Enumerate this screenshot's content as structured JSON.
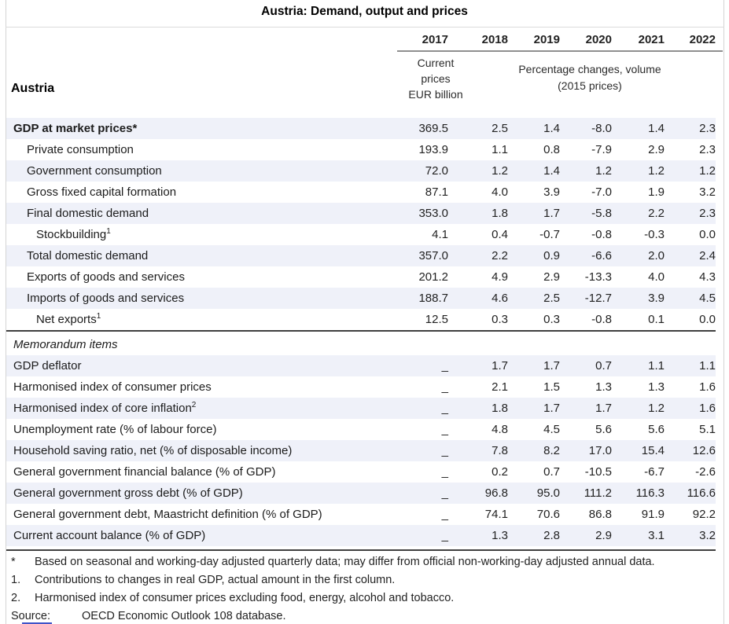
{
  "title": "Austria: Demand, output and prices",
  "colors": {
    "row_shading": "#eff1f9",
    "section_rule": "#3f3f3f",
    "years_underline": "#8f8f8f",
    "outer_border": "#d4d4d4",
    "statlink_blue": "#4053c8"
  },
  "table": {
    "country_label": "Austria",
    "years": [
      "2017",
      "2018",
      "2019",
      "2020",
      "2021",
      "2022"
    ],
    "col2017_subheader_lines": [
      "Current",
      "prices",
      "EUR billion"
    ],
    "volume_subheader_lines": [
      "Percentage changes, volume",
      "(2015 prices)"
    ],
    "sections": [
      {
        "rows": [
          {
            "label": "GDP at market prices*",
            "indent": 0,
            "bold": true,
            "shaded": true,
            "values": [
              "369.5",
              "2.5",
              "1.4",
              "-8.0",
              "1.4",
              "2.3"
            ]
          },
          {
            "label": "Private consumption",
            "indent": 1,
            "bold": false,
            "shaded": false,
            "values": [
              "193.9",
              "1.1",
              "0.8",
              "-7.9",
              "2.9",
              "2.3"
            ]
          },
          {
            "label": "Government consumption",
            "indent": 1,
            "bold": false,
            "shaded": true,
            "values": [
              "72.0",
              "1.2",
              "1.4",
              "1.2",
              "1.2",
              "1.2"
            ]
          },
          {
            "label": "Gross fixed capital formation",
            "indent": 1,
            "bold": false,
            "shaded": false,
            "values": [
              "87.1",
              "4.0",
              "3.9",
              "-7.0",
              "1.9",
              "3.2"
            ]
          },
          {
            "label": "Final domestic demand",
            "indent": 1,
            "bold": false,
            "shaded": true,
            "values": [
              "353.0",
              "1.8",
              "1.7",
              "-5.8",
              "2.2",
              "2.3"
            ]
          },
          {
            "label": "Stockbuilding",
            "sup": "1",
            "indent": 2,
            "bold": false,
            "shaded": false,
            "values": [
              "4.1",
              "0.4",
              "-0.7",
              "-0.8",
              "-0.3",
              "0.0"
            ]
          },
          {
            "label": "Total domestic demand",
            "indent": 1,
            "bold": false,
            "shaded": true,
            "values": [
              "357.0",
              "2.2",
              "0.9",
              "-6.6",
              "2.0",
              "2.4"
            ]
          },
          {
            "label": "Exports of goods and services",
            "indent": 1,
            "bold": false,
            "shaded": false,
            "values": [
              "201.2",
              "4.9",
              "2.9",
              "-13.3",
              "4.0",
              "4.3"
            ]
          },
          {
            "label": "Imports of goods and services",
            "indent": 1,
            "bold": false,
            "shaded": true,
            "values": [
              "188.7",
              "4.6",
              "2.5",
              "-12.7",
              "3.9",
              "4.5"
            ]
          },
          {
            "label": "Net exports",
            "sup": "1",
            "indent": 2,
            "bold": false,
            "shaded": false,
            "values": [
              "12.5",
              "0.3",
              "0.3",
              "-0.8",
              "0.1",
              "0.0"
            ]
          }
        ]
      },
      {
        "heading": "Memorandum items",
        "rows": [
          {
            "label": "GDP deflator",
            "indent": 0,
            "bold": false,
            "shaded": true,
            "values": [
              "_",
              "1.7",
              "1.7",
              "0.7",
              "1.1",
              "1.1"
            ]
          },
          {
            "label": "Harmonised index of consumer prices",
            "indent": 0,
            "bold": false,
            "shaded": false,
            "values": [
              "_",
              "2.1",
              "1.5",
              "1.3",
              "1.3",
              "1.6"
            ]
          },
          {
            "label": "Harmonised index of core inflation",
            "sup": "2",
            "indent": 0,
            "bold": false,
            "shaded": true,
            "values": [
              "_",
              "1.8",
              "1.7",
              "1.7",
              "1.2",
              "1.6"
            ]
          },
          {
            "label": "Unemployment rate (% of labour force)",
            "indent": 0,
            "bold": false,
            "shaded": false,
            "values": [
              "_",
              "4.8",
              "4.5",
              "5.6",
              "5.6",
              "5.1"
            ]
          },
          {
            "label": "Household saving ratio, net (% of disposable income)",
            "indent": 0,
            "bold": false,
            "shaded": true,
            "values": [
              "_",
              "7.8",
              "8.2",
              "17.0",
              "15.4",
              "12.6"
            ]
          },
          {
            "label": "General government financial balance (% of GDP)",
            "indent": 0,
            "bold": false,
            "shaded": false,
            "values": [
              "_",
              "0.2",
              "0.7",
              "-10.5",
              "-6.7",
              "-2.6"
            ]
          },
          {
            "label": "General government gross debt (% of GDP)",
            "indent": 0,
            "bold": false,
            "shaded": true,
            "values": [
              "_",
              "96.8",
              "95.0",
              "111.2",
              "116.3",
              "116.6"
            ]
          },
          {
            "label": "General government debt, Maastricht definition (% of GDP)",
            "indent": 0,
            "bold": false,
            "shaded": false,
            "values": [
              "_",
              "74.1",
              "70.6",
              "86.8",
              "91.9",
              "92.2"
            ]
          },
          {
            "label": "Current account balance (% of GDP)",
            "indent": 0,
            "bold": false,
            "shaded": true,
            "values": [
              "_",
              "1.3",
              "2.8",
              "2.9",
              "3.1",
              "3.2"
            ]
          }
        ]
      }
    ]
  },
  "footnotes": [
    {
      "marker": "*",
      "text": "Based on seasonal and working-day adjusted quarterly data; may differ from official non-working-day adjusted annual data."
    },
    {
      "marker": "1.",
      "text": "Contributions to changes in real GDP, actual amount in the first column."
    },
    {
      "marker": "2.",
      "text": "Harmonised index of consumer prices excluding food, energy, alcohol and tobacco."
    },
    {
      "marker": "Source:",
      "text": "OECD Economic Outlook 108 database."
    }
  ]
}
